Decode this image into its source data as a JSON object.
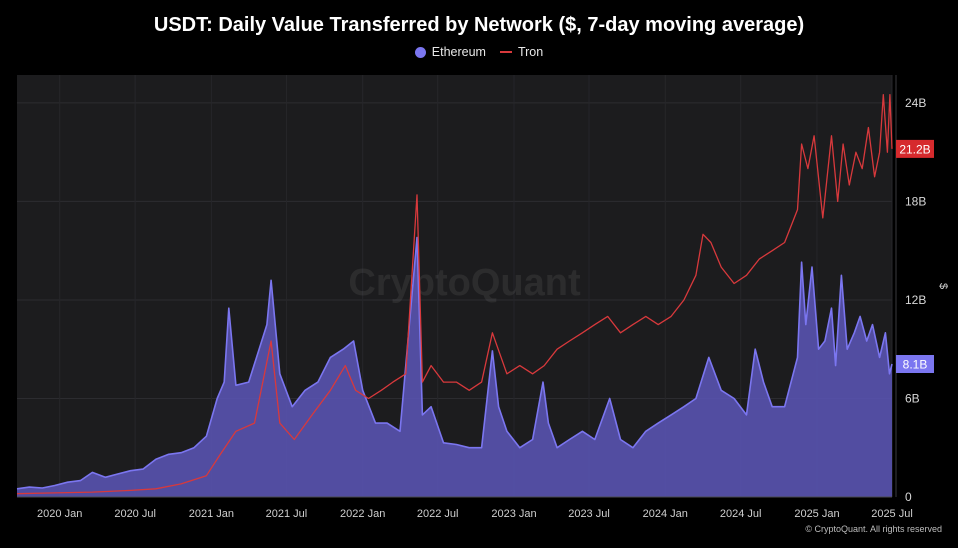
{
  "chart_data": {
    "type": "area",
    "title": "USDT: Daily Value Transferred by Network ($, 7-day moving average)",
    "ylabel": "$",
    "ylim": [
      0,
      25.7
    ],
    "y_ticks": [
      {
        "value": 0,
        "label": "0"
      },
      {
        "value": 6,
        "label": "6B"
      },
      {
        "value": 12,
        "label": "12B"
      },
      {
        "value": 18,
        "label": "18B"
      },
      {
        "value": 24,
        "label": "24B"
      }
    ],
    "x_range": [
      "2019-09-20",
      "2025-07-01"
    ],
    "x_ticks": [
      {
        "date": "2020-01-01",
        "label": "2020 Jan"
      },
      {
        "date": "2020-07-01",
        "label": "2020 Jul"
      },
      {
        "date": "2021-01-01",
        "label": "2021 Jan"
      },
      {
        "date": "2021-07-01",
        "label": "2021 Jul"
      },
      {
        "date": "2022-01-01",
        "label": "2022 Jan"
      },
      {
        "date": "2022-07-01",
        "label": "2022 Jul"
      },
      {
        "date": "2023-01-01",
        "label": "2023 Jan"
      },
      {
        "date": "2023-07-01",
        "label": "2023 Jul"
      },
      {
        "date": "2024-01-01",
        "label": "2024 Jan"
      },
      {
        "date": "2024-07-01",
        "label": "2024 Jul"
      },
      {
        "date": "2025-01-01",
        "label": "2025 Jan"
      },
      {
        "date": "2025-07-01",
        "label": "2025 Jul"
      }
    ],
    "grid": true,
    "legend_position": "top-center",
    "watermark": "CryptoQuant",
    "series": [
      {
        "name": "Ethereum",
        "render": "area",
        "color": "#7b76f0",
        "fill": "#5c56b8",
        "last_value_label": "8.1B",
        "points": [
          [
            "2019-09-20",
            0.5
          ],
          [
            "2019-10-20",
            0.6
          ],
          [
            "2019-11-20",
            0.55
          ],
          [
            "2019-12-20",
            0.7
          ],
          [
            "2020-01-20",
            0.9
          ],
          [
            "2020-02-20",
            1.0
          ],
          [
            "2020-03-20",
            1.5
          ],
          [
            "2020-04-20",
            1.2
          ],
          [
            "2020-05-20",
            1.4
          ],
          [
            "2020-06-20",
            1.6
          ],
          [
            "2020-07-20",
            1.7
          ],
          [
            "2020-08-20",
            2.3
          ],
          [
            "2020-09-20",
            2.6
          ],
          [
            "2020-10-20",
            2.7
          ],
          [
            "2020-11-20",
            3.0
          ],
          [
            "2020-12-20",
            3.7
          ],
          [
            "2021-01-15",
            6.0
          ],
          [
            "2021-02-01",
            7.0
          ],
          [
            "2021-02-12",
            11.5
          ],
          [
            "2021-03-01",
            6.8
          ],
          [
            "2021-04-01",
            7.0
          ],
          [
            "2021-05-15",
            10.5
          ],
          [
            "2021-05-25",
            13.2
          ],
          [
            "2021-06-15",
            7.5
          ],
          [
            "2021-07-15",
            5.5
          ],
          [
            "2021-08-15",
            6.5
          ],
          [
            "2021-09-15",
            7.0
          ],
          [
            "2021-10-15",
            8.5
          ],
          [
            "2021-11-15",
            9.0
          ],
          [
            "2021-12-10",
            9.5
          ],
          [
            "2022-01-01",
            6.5
          ],
          [
            "2022-02-01",
            4.5
          ],
          [
            "2022-03-01",
            4.5
          ],
          [
            "2022-04-01",
            4.0
          ],
          [
            "2022-05-12",
            15.8
          ],
          [
            "2022-05-25",
            5.0
          ],
          [
            "2022-06-15",
            5.5
          ],
          [
            "2022-07-15",
            3.3
          ],
          [
            "2022-08-15",
            3.2
          ],
          [
            "2022-09-15",
            3.0
          ],
          [
            "2022-10-15",
            3.0
          ],
          [
            "2022-11-10",
            8.9
          ],
          [
            "2022-11-25",
            5.5
          ],
          [
            "2022-12-15",
            4.0
          ],
          [
            "2023-01-15",
            3.0
          ],
          [
            "2023-02-15",
            3.5
          ],
          [
            "2023-03-12",
            7.0
          ],
          [
            "2023-03-25",
            4.5
          ],
          [
            "2023-04-15",
            3.0
          ],
          [
            "2023-05-15",
            3.5
          ],
          [
            "2023-06-15",
            4.0
          ],
          [
            "2023-07-15",
            3.5
          ],
          [
            "2023-08-20",
            6.0
          ],
          [
            "2023-09-15",
            3.5
          ],
          [
            "2023-10-15",
            3.0
          ],
          [
            "2023-11-15",
            4.0
          ],
          [
            "2023-12-15",
            4.5
          ],
          [
            "2024-01-15",
            5.0
          ],
          [
            "2024-02-15",
            5.5
          ],
          [
            "2024-03-15",
            6.0
          ],
          [
            "2024-04-15",
            8.5
          ],
          [
            "2024-05-15",
            6.5
          ],
          [
            "2024-06-15",
            6.0
          ],
          [
            "2024-07-15",
            5.0
          ],
          [
            "2024-08-05",
            9.0
          ],
          [
            "2024-08-25",
            7.0
          ],
          [
            "2024-09-15",
            5.5
          ],
          [
            "2024-10-15",
            5.5
          ],
          [
            "2024-11-15",
            8.5
          ],
          [
            "2024-11-25",
            14.3
          ],
          [
            "2024-12-05",
            10.5
          ],
          [
            "2024-12-20",
            14.0
          ],
          [
            "2025-01-05",
            9.0
          ],
          [
            "2025-01-20",
            9.5
          ],
          [
            "2025-02-05",
            11.5
          ],
          [
            "2025-02-15",
            8.0
          ],
          [
            "2025-03-01",
            13.5
          ],
          [
            "2025-03-15",
            9.0
          ],
          [
            "2025-04-01",
            10.0
          ],
          [
            "2025-04-15",
            11.0
          ],
          [
            "2025-05-01",
            9.5
          ],
          [
            "2025-05-15",
            10.5
          ],
          [
            "2025-06-01",
            8.5
          ],
          [
            "2025-06-15",
            10.0
          ],
          [
            "2025-06-25",
            7.5
          ],
          [
            "2025-07-01",
            8.1
          ]
        ]
      },
      {
        "name": "Tron",
        "render": "line",
        "color": "#d8393c",
        "last_value_label": "21.2B",
        "points": [
          [
            "2019-09-20",
            0.2
          ],
          [
            "2019-12-20",
            0.25
          ],
          [
            "2020-03-20",
            0.3
          ],
          [
            "2020-06-20",
            0.4
          ],
          [
            "2020-08-20",
            0.5
          ],
          [
            "2020-10-20",
            0.8
          ],
          [
            "2020-12-20",
            1.3
          ],
          [
            "2021-01-20",
            2.5
          ],
          [
            "2021-03-01",
            4.0
          ],
          [
            "2021-04-15",
            4.5
          ],
          [
            "2021-05-25",
            9.5
          ],
          [
            "2021-06-15",
            4.5
          ],
          [
            "2021-07-20",
            3.5
          ],
          [
            "2021-09-01",
            5.0
          ],
          [
            "2021-10-15",
            6.5
          ],
          [
            "2021-11-20",
            8.0
          ],
          [
            "2021-12-15",
            6.5
          ],
          [
            "2022-01-15",
            6.0
          ],
          [
            "2022-02-15",
            6.5
          ],
          [
            "2022-03-15",
            7.0
          ],
          [
            "2022-04-15",
            7.5
          ],
          [
            "2022-05-12",
            18.4
          ],
          [
            "2022-05-25",
            7.0
          ],
          [
            "2022-06-15",
            8.0
          ],
          [
            "2022-07-15",
            7.0
          ],
          [
            "2022-08-15",
            7.0
          ],
          [
            "2022-09-15",
            6.5
          ],
          [
            "2022-10-15",
            7.0
          ],
          [
            "2022-11-10",
            10.0
          ],
          [
            "2022-12-15",
            7.5
          ],
          [
            "2023-01-15",
            8.0
          ],
          [
            "2023-02-15",
            7.5
          ],
          [
            "2023-03-15",
            8.0
          ],
          [
            "2023-04-15",
            9.0
          ],
          [
            "2023-05-15",
            9.5
          ],
          [
            "2023-06-15",
            10.0
          ],
          [
            "2023-07-15",
            10.5
          ],
          [
            "2023-08-15",
            11.0
          ],
          [
            "2023-09-15",
            10.0
          ],
          [
            "2023-10-15",
            10.5
          ],
          [
            "2023-11-15",
            11.0
          ],
          [
            "2023-12-15",
            10.5
          ],
          [
            "2024-01-15",
            11.0
          ],
          [
            "2024-02-15",
            12.0
          ],
          [
            "2024-03-15",
            13.5
          ],
          [
            "2024-04-01",
            16.0
          ],
          [
            "2024-04-20",
            15.5
          ],
          [
            "2024-05-15",
            14.0
          ],
          [
            "2024-06-15",
            13.0
          ],
          [
            "2024-07-15",
            13.5
          ],
          [
            "2024-08-15",
            14.5
          ],
          [
            "2024-09-15",
            15.0
          ],
          [
            "2024-10-15",
            15.5
          ],
          [
            "2024-11-15",
            17.5
          ],
          [
            "2024-11-25",
            21.5
          ],
          [
            "2024-12-10",
            20.0
          ],
          [
            "2024-12-25",
            22.0
          ],
          [
            "2025-01-15",
            17.0
          ],
          [
            "2025-02-05",
            22.0
          ],
          [
            "2025-02-20",
            18.0
          ],
          [
            "2025-03-05",
            21.5
          ],
          [
            "2025-03-20",
            19.0
          ],
          [
            "2025-04-05",
            21.0
          ],
          [
            "2025-04-20",
            20.0
          ],
          [
            "2025-05-05",
            22.5
          ],
          [
            "2025-05-20",
            19.5
          ],
          [
            "2025-06-01",
            21.0
          ],
          [
            "2025-06-10",
            24.5
          ],
          [
            "2025-06-20",
            21.0
          ],
          [
            "2025-06-26",
            24.5
          ],
          [
            "2025-07-01",
            21.2
          ]
        ]
      }
    ]
  },
  "copyright": "© CryptoQuant. All rights reserved"
}
